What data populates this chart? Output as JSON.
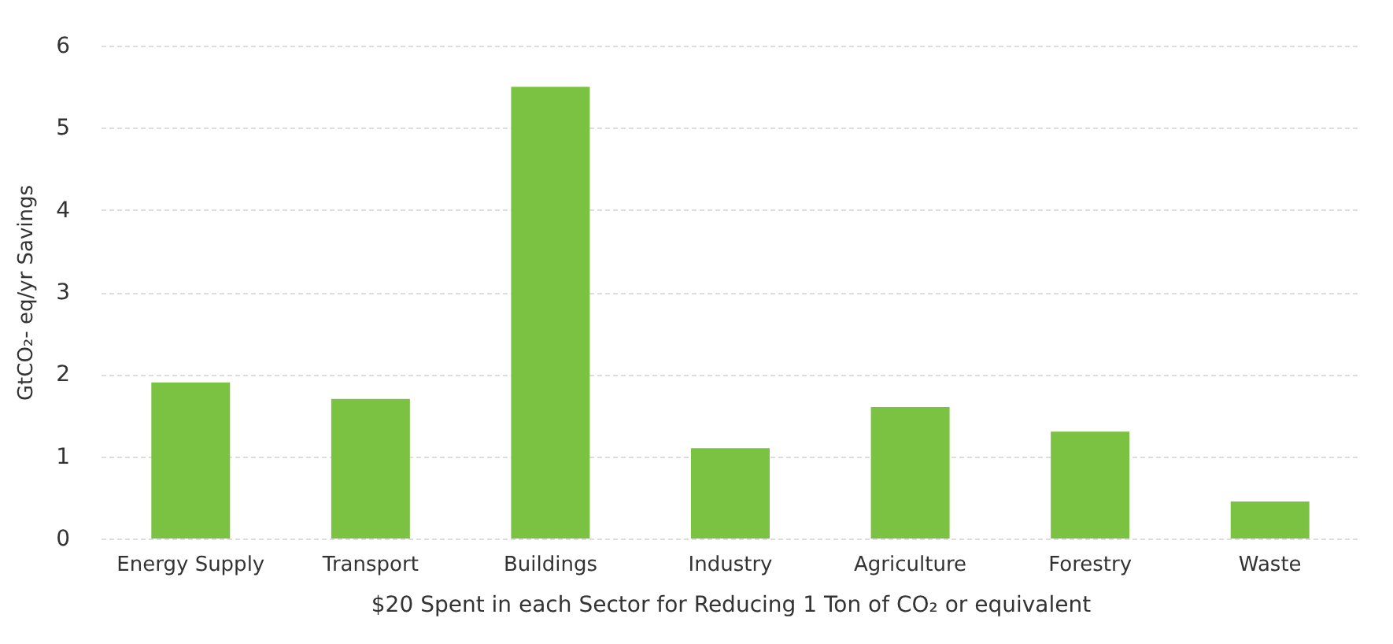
{
  "chart_data": {
    "type": "bar",
    "xlabel": "$20 Spent in each Sector for Reducing 1 Ton of CO₂ or equivalent",
    "ylabel": "GtCO₂- eq/yr Savings",
    "categories": [
      "Energy Supply",
      "Transport",
      "Buildings",
      "Industry",
      "Agriculture",
      "Forestry",
      "Waste"
    ],
    "values": [
      1.9,
      1.7,
      5.5,
      1.1,
      1.6,
      1.3,
      0.45
    ],
    "color": "#7cc242",
    "ylim": [
      0,
      6
    ],
    "yticks": [
      0,
      1,
      2,
      3,
      4,
      5,
      6
    ],
    "grid": "y"
  }
}
